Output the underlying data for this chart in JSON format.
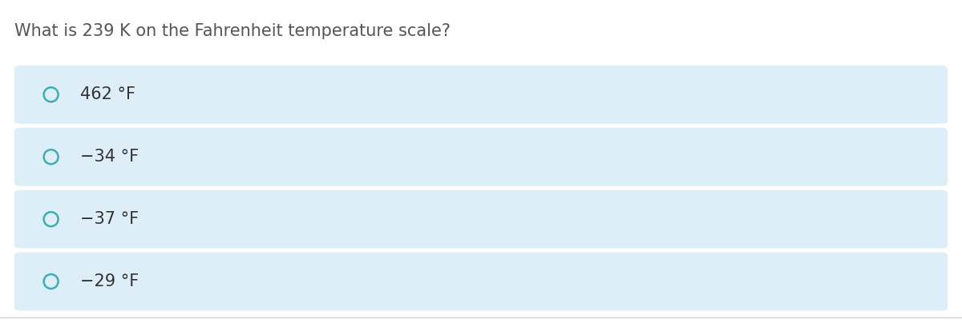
{
  "question": "What is 239 K on the Fahrenheit temperature scale?",
  "options": [
    "462 °F",
    "−34 °F",
    "−37 °F",
    "−29 °F"
  ],
  "bg_color": "#ffffff",
  "option_bg_color": "#ddeef8",
  "question_color": "#555555",
  "option_text_color": "#333333",
  "circle_edge_color": "#3ab0b0",
  "circle_face_color": "#ddeef8",
  "bottom_bar_color": "#d0d0d0",
  "question_fontsize": 15,
  "option_fontsize": 15,
  "fig_width": 12.0,
  "fig_height": 4.09
}
